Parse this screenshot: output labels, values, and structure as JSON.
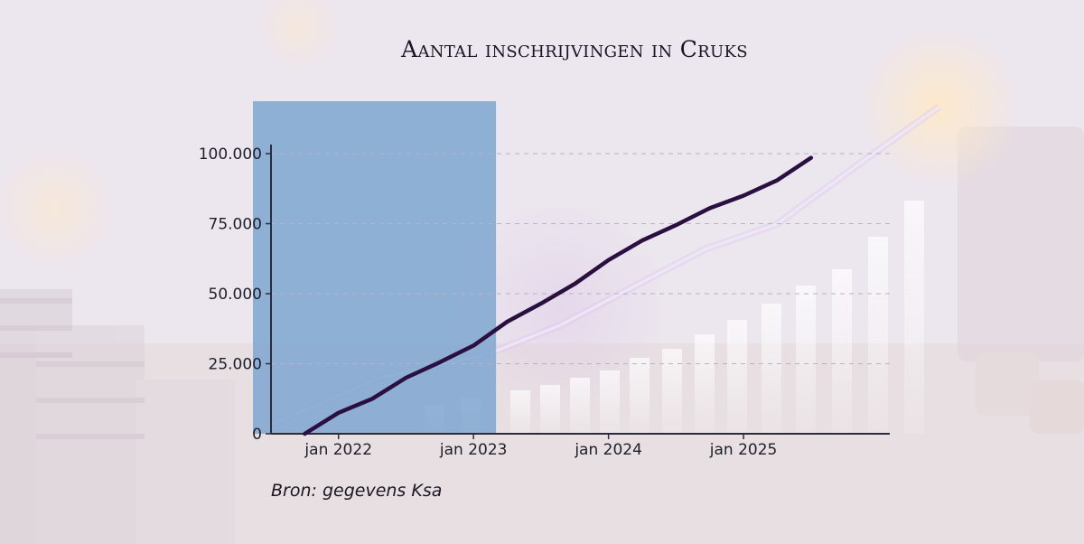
{
  "chart_data": {
    "type": "line",
    "title": "Aantal inschrijvingen in Cruks",
    "xlabel": "",
    "ylabel": "",
    "source": "Bron: gegevens Ksa",
    "x_ticks": [
      "jan 2022",
      "jan 2023",
      "jan 2024",
      "jan 2025"
    ],
    "y_ticks": [
      "0",
      "25.000",
      "50.000",
      "75.000",
      "100.000"
    ],
    "y_tick_values": [
      0,
      25000,
      50000,
      75000,
      100000
    ],
    "ylim": [
      0,
      100000
    ],
    "xlim": [
      "2021-07",
      "2026-02"
    ],
    "grid": true,
    "gridlines": "horizontal dashed",
    "highlight_region": {
      "from": "2021-07",
      "to": "2023-03",
      "color": "#7fa6d0"
    },
    "series": [
      {
        "color": "#2a1040",
        "x": [
          "2021-10",
          "2022-01",
          "2022-04",
          "2022-07",
          "2022-10",
          "2023-01",
          "2023-04",
          "2023-07",
          "2023-10",
          "2024-01",
          "2024-04",
          "2024-07",
          "2024-10",
          "2025-01",
          "2025-04",
          "2025-07"
        ],
        "values": [
          0,
          7500,
          12500,
          20000,
          25500,
          31500,
          40000,
          46500,
          53500,
          62000,
          69000,
          74500,
          80500,
          85000,
          90500,
          98500
        ]
      }
    ]
  },
  "colors": {
    "axis": "#2b2b3a",
    "grid": "#b9b2c2",
    "line": "#2a1040",
    "highlight": "#7fa6d0"
  }
}
